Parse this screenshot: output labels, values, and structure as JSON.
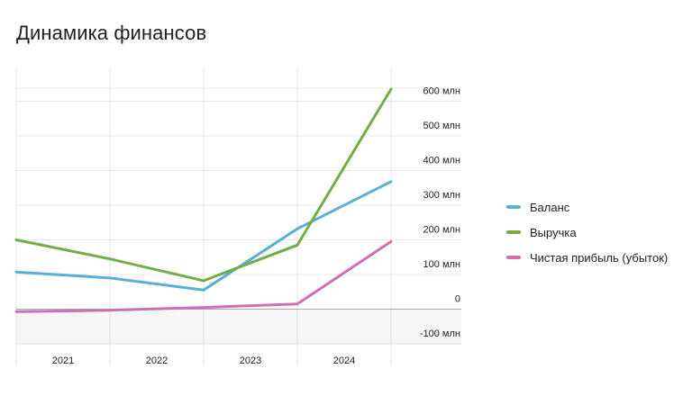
{
  "title": "Динамика финансов",
  "chart_data": {
    "type": "line",
    "categories": [
      "2021",
      "2022",
      "2023",
      "2024"
    ],
    "y_ticks": [
      -100,
      0,
      100,
      200,
      300,
      400,
      500,
      600
    ],
    "y_tick_labels": [
      "-100 млн",
      "0",
      "100 млн",
      "200 млн",
      "300 млн",
      "400 млн",
      "500 млн",
      "600 млн"
    ],
    "ylim": [
      -100,
      640
    ],
    "y_unit": "млн",
    "grid": true,
    "legend_position": "right",
    "series": [
      {
        "name": "Баланс",
        "color": "#5aafd8",
        "x": [
          2020.5,
          2021.5,
          2022.5,
          2023.5,
          2024.5
        ],
        "values": [
          107,
          90,
          55,
          232,
          368
        ]
      },
      {
        "name": "Выручка",
        "color": "#73ad45",
        "x": [
          2020.5,
          2021.5,
          2022.5,
          2023.5,
          2024.5
        ],
        "values": [
          200,
          145,
          82,
          185,
          635
        ]
      },
      {
        "name": "Чистая прибыль (убыток)",
        "color": "#cc70b2",
        "x": [
          2020.5,
          2021.5,
          2022.5,
          2023.5,
          2024.5
        ],
        "values": [
          -7,
          -3,
          5,
          15,
          195
        ]
      }
    ]
  }
}
